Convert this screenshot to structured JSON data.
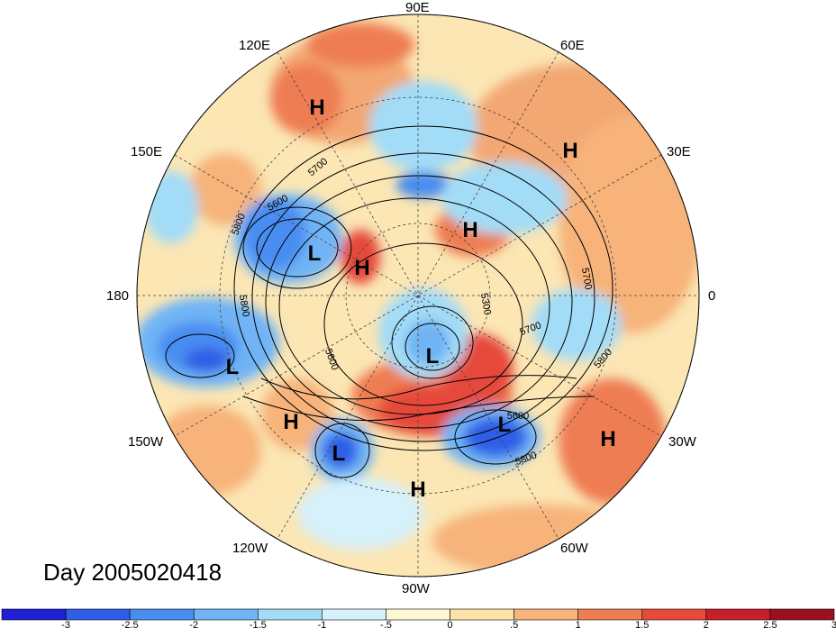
{
  "map": {
    "longitude_labels": [
      "90E",
      "60E",
      "30E",
      "0",
      "30W",
      "60W",
      "90W",
      "120W",
      "150W",
      "180",
      "150E",
      "120E"
    ],
    "pressure_centers": [
      {
        "type": "H",
        "region": "East Siberia"
      },
      {
        "type": "H",
        "region": "Europe"
      },
      {
        "type": "H",
        "region": "Arctic Ocean"
      },
      {
        "type": "L",
        "region": "East Siberian Sea"
      },
      {
        "type": "H",
        "region": "Chukotka"
      },
      {
        "type": "L",
        "region": "Central Pacific"
      },
      {
        "type": "L",
        "region": "Hudson Bay"
      },
      {
        "type": "H",
        "region": "Northeast Pacific"
      },
      {
        "type": "L",
        "region": "West Coast USA"
      },
      {
        "type": "L",
        "region": "North Atlantic"
      },
      {
        "type": "H",
        "region": "East Atlantic"
      },
      {
        "type": "H",
        "region": "Mexico"
      }
    ],
    "contour_labels": [
      "5700",
      "5600",
      "5800",
      "5800",
      "5600",
      "5300",
      "5700",
      "5800",
      "5700",
      "5600",
      "5800"
    ],
    "date_label": "Day 2005020418"
  },
  "colorbar": {
    "tick_labels": [
      "-3",
      "-2.5",
      "-2",
      "-1.5",
      "-1",
      "-.5",
      "0",
      ".5",
      "1",
      "1.5",
      "2",
      "2.5",
      "3"
    ],
    "colors": [
      "#1f1fd6",
      "#2e5ee6",
      "#4a8df0",
      "#70b4f5",
      "#a2dcf7",
      "#d6f1fb",
      "#fdf8d3",
      "#fbe3a9",
      "#f7b37a",
      "#ef7d52",
      "#e64a3a",
      "#c7202a",
      "#9c1020"
    ]
  }
}
